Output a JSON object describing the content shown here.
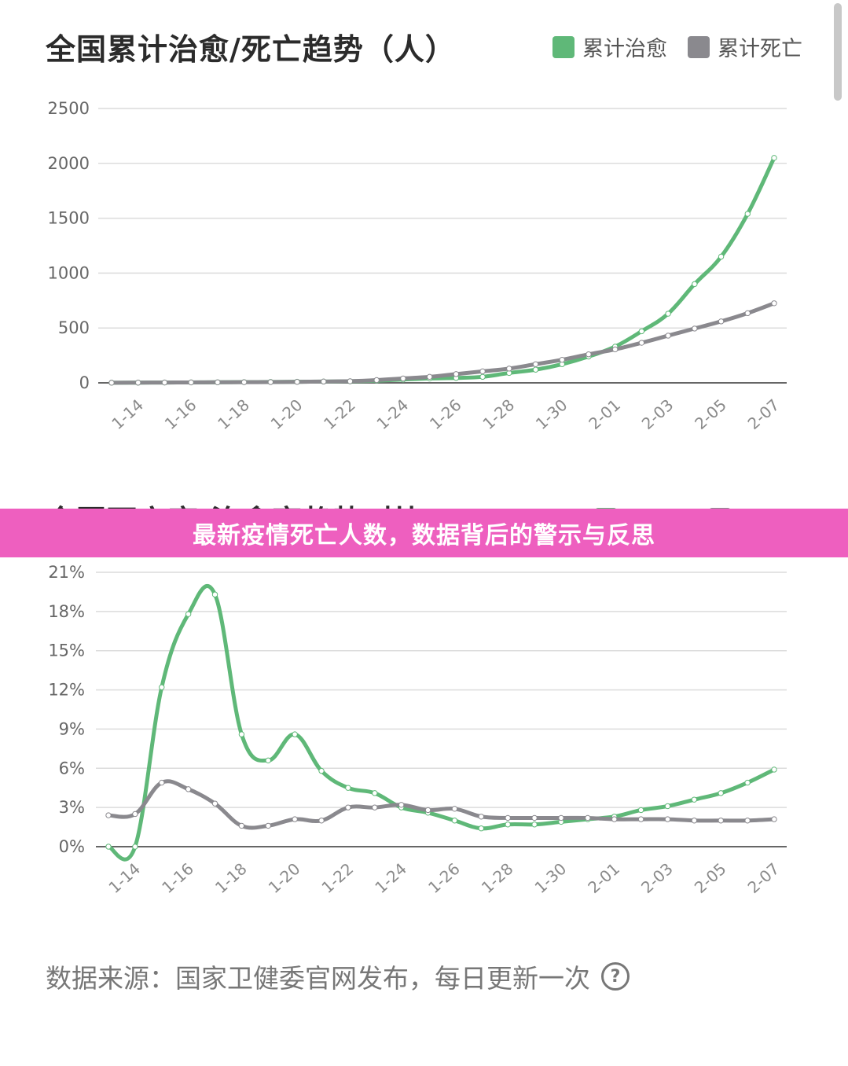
{
  "banner": {
    "text": "最新疫情死亡人数，数据背后的警示与反思"
  },
  "source": {
    "text": "数据来源：国家卫健委官网发布，每日更新一次",
    "help_icon": "?"
  },
  "chart_data": [
    {
      "type": "line",
      "title": "全国累计治愈/死亡趋势（人）",
      "legend_position": "top-right",
      "grid": true,
      "ylim": [
        0,
        2500
      ],
      "yticks": [
        "0",
        "500",
        "1000",
        "1500",
        "2000",
        "2500"
      ],
      "xticks": [
        "1-14",
        "1-16",
        "1-18",
        "1-20",
        "1-22",
        "1-24",
        "1-26",
        "1-28",
        "1-30",
        "2-01",
        "2-03",
        "2-05",
        "2-07"
      ],
      "x": [
        "1-13",
        "1-14",
        "1-15",
        "1-16",
        "1-17",
        "1-18",
        "1-19",
        "1-20",
        "1-21",
        "1-22",
        "1-23",
        "1-24",
        "1-25",
        "1-26",
        "1-27",
        "1-28",
        "1-29",
        "1-30",
        "1-31",
        "2-01",
        "2-02",
        "2-03",
        "2-04",
        "2-05",
        "2-06",
        "2-07"
      ],
      "series": [
        {
          "name": "累计治愈",
          "color": "#5fb878",
          "values": [
            1,
            2,
            3,
            4,
            5,
            7,
            8,
            10,
            12,
            14,
            20,
            30,
            40,
            45,
            55,
            90,
            120,
            170,
            240,
            330,
            470,
            630,
            900,
            1150,
            1540,
            2050
          ]
        },
        {
          "name": "累计死亡",
          "color": "#8a898e",
          "values": [
            1,
            2,
            3,
            4,
            5,
            6,
            7,
            9,
            12,
            15,
            25,
            40,
            55,
            80,
            105,
            130,
            170,
            210,
            260,
            305,
            365,
            430,
            495,
            560,
            635,
            725
          ]
        }
      ]
    },
    {
      "type": "line",
      "title": "全国死亡率/治愈率趋势对比",
      "legend_position": "top-right",
      "grid": true,
      "ylim": [
        0,
        21
      ],
      "yticks": [
        "0%",
        "3%",
        "6%",
        "9%",
        "12%",
        "15%",
        "18%",
        "21%"
      ],
      "xticks": [
        "1-14",
        "1-16",
        "1-18",
        "1-20",
        "1-22",
        "1-24",
        "1-26",
        "1-28",
        "1-30",
        "2-01",
        "2-03",
        "2-05",
        "2-07"
      ],
      "x": [
        "1-13",
        "1-14",
        "1-15",
        "1-16",
        "1-17",
        "1-18",
        "1-19",
        "1-20",
        "1-21",
        "1-22",
        "1-23",
        "1-24",
        "1-25",
        "1-26",
        "1-27",
        "1-28",
        "1-29",
        "1-30",
        "1-31",
        "2-01",
        "2-02",
        "2-03",
        "2-04",
        "2-05",
        "2-06",
        "2-07"
      ],
      "series": [
        {
          "name": "治愈率",
          "color": "#5fb878",
          "values": [
            0,
            0,
            12.2,
            17.8,
            19.3,
            8.6,
            6.6,
            8.6,
            5.8,
            4.5,
            4.1,
            3.0,
            2.6,
            2.0,
            1.4,
            1.7,
            1.7,
            1.9,
            2.1,
            2.3,
            2.8,
            3.1,
            3.6,
            4.1,
            4.9,
            5.9
          ]
        },
        {
          "name": "死亡率",
          "color": "#8a898e",
          "values": [
            2.4,
            2.5,
            4.9,
            4.4,
            3.3,
            1.6,
            1.6,
            2.1,
            2.0,
            3.0,
            3.0,
            3.2,
            2.8,
            2.9,
            2.3,
            2.2,
            2.2,
            2.2,
            2.2,
            2.1,
            2.1,
            2.1,
            2.0,
            2.0,
            2.0,
            2.1
          ]
        }
      ]
    }
  ]
}
